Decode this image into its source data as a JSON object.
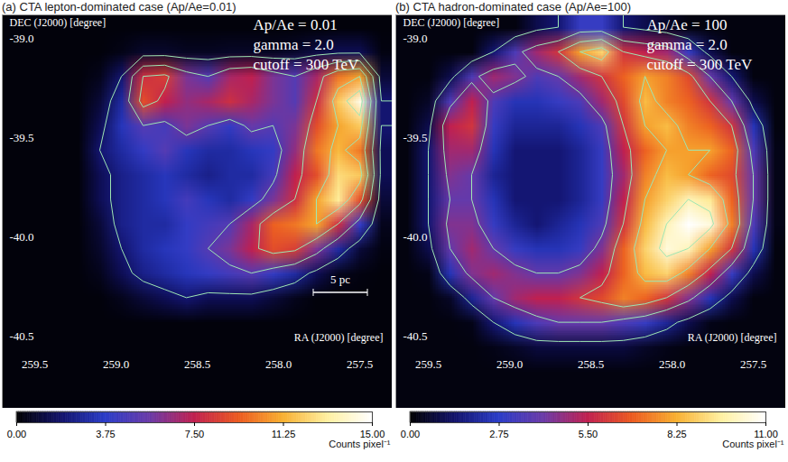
{
  "chart_data": [
    {
      "type": "heatmap",
      "title": "(a) CTA lepton-dominated case (Ap/Ae=0.01)",
      "x_label": "RA (J2000) [degree]",
      "y_label": "DEC (J2000) [degree]",
      "xlim": [
        259.7,
        257.3
      ],
      "ylim": [
        -40.86,
        -38.88
      ],
      "xticks": [
        259.5,
        {
          "value": 259,
          "label": "259.0"
        },
        258.5,
        {
          "value": 258,
          "label": "258.0"
        },
        257.5
      ],
      "yticks": [
        {
          "value": -39,
          "label": "-39.0"
        },
        -39.5,
        {
          "value": -40,
          "label": "-40.0"
        },
        -40.5
      ],
      "annotations": [
        "Ap/Ae = 0.01",
        "gamma = 2.0",
        "cutoff = 300 TeV"
      ],
      "scale_bar": "5 pc",
      "cells": [
        [
          0.2,
          0.2,
          0.2,
          0.2,
          0.2,
          0.2,
          0.2,
          0.2,
          0.2,
          0.2,
          0.2,
          0.2,
          0.2,
          0.2,
          0.2,
          0.2,
          0.2,
          0.2
        ],
        [
          0.2,
          0.2,
          0.2,
          0.2,
          0.2,
          0.4,
          0.8,
          0.8,
          0.6,
          0.6,
          0.7,
          0.7,
          0.6,
          0.8,
          1.2,
          1.5,
          1.5,
          0.3
        ],
        [
          0.2,
          0.2,
          0.2,
          0.2,
          0.5,
          2,
          8,
          8.5,
          6,
          5,
          7,
          7.5,
          6,
          5,
          7,
          10,
          11,
          1
        ],
        [
          0.2,
          0.2,
          0.2,
          0.2,
          1,
          3,
          9,
          7.5,
          6.5,
          7,
          8,
          7,
          6,
          5,
          8,
          12,
          14.5,
          2
        ],
        [
          0.2,
          0.2,
          0.2,
          0.2,
          1.5,
          3.5,
          5,
          4.5,
          6,
          5,
          4,
          5.5,
          5,
          6,
          9,
          11,
          12,
          2
        ],
        [
          0.2,
          0.2,
          0.2,
          0.2,
          2,
          3,
          4,
          5,
          3.5,
          3,
          3,
          3.5,
          4,
          6.5,
          10,
          11.5,
          10,
          1.5
        ],
        [
          0.2,
          0.2,
          0.2,
          0.2,
          1.5,
          2.5,
          3,
          3.5,
          3,
          2.5,
          3,
          3,
          4.5,
          7.5,
          9,
          12.5,
          12,
          1.5
        ],
        [
          0.2,
          0.2,
          0.2,
          0.2,
          1.5,
          2.5,
          3,
          3.5,
          4.5,
          3.5,
          3,
          4,
          6,
          8,
          11,
          13,
          9,
          1
        ],
        [
          0.2,
          0.2,
          0.2,
          0.2,
          1,
          2.5,
          3,
          3,
          4,
          4.5,
          5,
          7,
          9.5,
          10,
          11,
          8,
          4,
          0.5
        ],
        [
          0.2,
          0.2,
          0.2,
          0.2,
          0.8,
          2,
          3,
          3.5,
          4,
          5,
          6,
          7.5,
          9,
          8.5,
          6,
          3,
          1,
          0.3
        ],
        [
          0.2,
          0.2,
          0.2,
          0.2,
          0.5,
          1.5,
          2.5,
          3,
          3.5,
          4,
          4.5,
          5,
          4,
          3,
          1.5,
          0.5,
          0.3,
          0.2
        ],
        [
          0.2,
          0.2,
          0.2,
          0.2,
          0.2,
          0.5,
          1,
          1.5,
          2,
          1.5,
          1.5,
          1.5,
          1,
          0.5,
          0.2,
          0.2,
          0.2,
          0.2
        ],
        [
          0.2,
          0.2,
          0.2,
          0.2,
          0.2,
          0.2,
          0.2,
          0.2,
          0.2,
          0.2,
          0.2,
          0.2,
          0.2,
          0.2,
          0.2,
          0.2,
          0.2,
          0.2
        ],
        [
          0.2,
          0.2,
          0.2,
          0.2,
          0.2,
          0.2,
          0.2,
          0.2,
          0.2,
          0.2,
          0.2,
          0.2,
          0.2,
          0.2,
          0.2,
          0.2,
          0.2,
          0.2
        ],
        [
          0.2,
          0.2,
          0.2,
          0.2,
          0.2,
          0.2,
          0.2,
          0.2,
          0.2,
          0.2,
          0.2,
          0.2,
          0.2,
          0.2,
          0.2,
          0.2,
          0.2,
          0.2
        ],
        [
          0.2,
          0.2,
          0.2,
          0.2,
          0.2,
          0.2,
          0.2,
          0.2,
          0.2,
          0.2,
          0.2,
          0.2,
          0.2,
          0.2,
          0.2,
          0.2,
          0.2,
          0.2
        ]
      ],
      "contour_levels": [
        2,
        5,
        8,
        11,
        13
      ],
      "colorbar": {
        "label": "Counts pixel⁻¹",
        "range": [
          0,
          15
        ],
        "ticks": [
          {
            "value": 0,
            "label": "0.00"
          },
          3.75,
          {
            "value": 7.5,
            "label": "7.50"
          },
          11.25,
          {
            "value": 15,
            "label": "15.00"
          }
        ]
      }
    },
    {
      "type": "heatmap",
      "title": "(b) CTA hadron-dominated case (Ap/Ae=100)",
      "x_label": "RA (J2000) [degree]",
      "y_label": "DEC (J2000) [degree]",
      "xlim": [
        259.7,
        257.3
      ],
      "ylim": [
        -40.86,
        -38.88
      ],
      "xticks": [
        259.5,
        {
          "value": 259,
          "label": "259.0"
        },
        258.5,
        {
          "value": 258,
          "label": "258.0"
        },
        257.5
      ],
      "yticks": [
        {
          "value": -39,
          "label": "-39.0"
        },
        -39.5,
        {
          "value": -40,
          "label": "-40.0"
        },
        -40.5
      ],
      "annotations": [
        "Ap/Ae = 100",
        "gamma = 2.0",
        "cutoff = 300 TeV"
      ],
      "cells": [
        [
          0.2,
          0.2,
          0.2,
          0.2,
          0.2,
          0.2,
          1,
          1.5,
          3,
          3,
          1.5,
          1,
          0.5,
          0.2,
          0.2,
          0.2,
          0.2,
          0.2
        ],
        [
          0.2,
          0.2,
          0.2,
          0.2,
          1.5,
          3.5,
          5,
          6,
          8,
          9,
          6,
          5.5,
          5,
          3,
          1,
          0.2,
          0.2,
          0.2
        ],
        [
          0.2,
          0.2,
          1,
          3.5,
          5,
          4.5,
          3.5,
          4,
          5,
          6,
          7,
          8,
          7.5,
          6.5,
          4,
          1.5,
          0.2,
          0.2
        ],
        [
          0.2,
          0.5,
          3.5,
          5.5,
          3.5,
          2.5,
          2.5,
          3,
          3.5,
          5,
          6.5,
          8.5,
          7.5,
          7,
          6,
          4,
          1,
          0.2
        ],
        [
          0.2,
          1,
          5.5,
          6,
          3,
          2,
          2,
          2,
          2.5,
          3.5,
          6,
          8,
          8.5,
          7.5,
          7,
          6,
          2.5,
          0.2
        ],
        [
          0.2,
          1.5,
          5,
          5,
          2.5,
          1.5,
          1.5,
          1.5,
          2,
          3,
          5.5,
          7,
          8,
          8,
          8,
          7,
          3.5,
          0.3
        ],
        [
          0.2,
          1.5,
          4.5,
          4,
          2,
          1.5,
          1.5,
          1.5,
          2,
          3,
          5,
          7.5,
          8.5,
          8,
          7,
          6.5,
          4,
          0.3
        ],
        [
          0.2,
          1.5,
          4,
          4,
          2.5,
          1.5,
          1.5,
          1.5,
          2,
          3,
          5.5,
          8,
          9,
          10,
          9.5,
          7,
          4,
          0.3
        ],
        [
          0.2,
          1.5,
          4.5,
          4.5,
          3,
          2,
          1.5,
          2,
          2.5,
          3.5,
          6,
          8.5,
          10,
          11,
          10.5,
          7.5,
          3.5,
          0.3
        ],
        [
          0.2,
          1,
          4,
          5,
          4,
          3,
          2.5,
          2.5,
          3,
          4.5,
          7,
          9,
          10.5,
          10,
          8,
          6,
          2.5,
          0.2
        ],
        [
          0.2,
          0.3,
          2.5,
          4.5,
          5,
          4.5,
          4,
          4,
          4.5,
          5.5,
          7,
          8.5,
          9,
          7.5,
          5.5,
          3,
          1,
          0.2
        ],
        [
          0.2,
          0.2,
          0.5,
          2,
          4,
          5,
          5.5,
          5.5,
          6,
          6.5,
          7.5,
          7,
          6,
          4.5,
          2.5,
          1,
          0.2,
          0.2
        ],
        [
          0.2,
          0.2,
          0.2,
          0.3,
          1.5,
          2.5,
          3.5,
          4,
          4,
          4,
          3.5,
          3,
          2,
          1,
          0.3,
          0.2,
          0.2,
          0.2
        ],
        [
          0.2,
          0.2,
          0.2,
          0.2,
          0.3,
          0.5,
          0.8,
          0.8,
          0.8,
          0.8,
          0.8,
          0.5,
          0.3,
          0.2,
          0.2,
          0.2,
          0.2,
          0.2
        ],
        [
          0.2,
          0.2,
          0.2,
          0.2,
          0.2,
          0.2,
          0.2,
          0.2,
          0.2,
          0.2,
          0.2,
          0.2,
          0.2,
          0.2,
          0.2,
          0.2,
          0.2,
          0.2
        ],
        [
          0.2,
          0.2,
          0.2,
          0.2,
          0.2,
          0.2,
          0.2,
          0.2,
          0.2,
          0.2,
          0.2,
          0.2,
          0.2,
          0.2,
          0.2,
          0.2,
          0.2,
          0.2
        ]
      ],
      "contour_levels": [
        1.5,
        4,
        6,
        8,
        10
      ],
      "colorbar": {
        "label": "Counts pixel⁻¹",
        "range": [
          0,
          11
        ],
        "ticks": [
          {
            "value": 0,
            "label": "0.00"
          },
          2.75,
          {
            "value": 5.5,
            "label": "5.50"
          },
          8.25,
          {
            "value": 11,
            "label": "11.00"
          }
        ]
      }
    }
  ]
}
